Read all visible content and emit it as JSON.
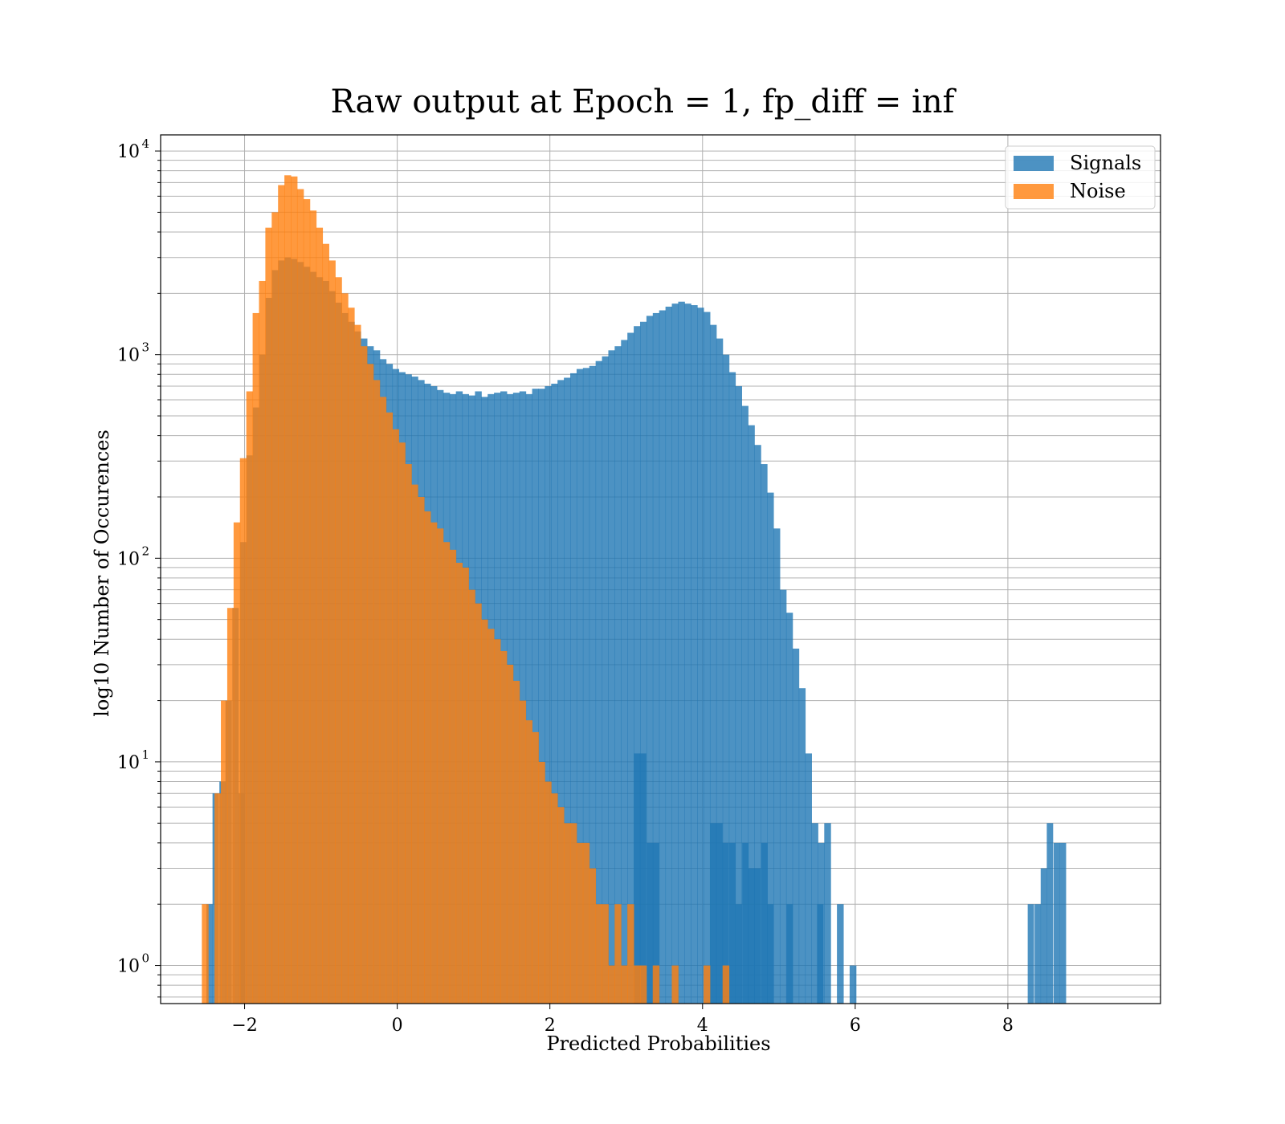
{
  "chart_data": {
    "type": "histogram",
    "title": "Raw output at Epoch = 1, fp_diff = inf",
    "xlabel": "Predicted Probabilities",
    "ylabel": "log10 Number of Occurences",
    "yscale": "log",
    "xlim": [
      -3.1,
      10.0
    ],
    "ylim": [
      0.65,
      12000
    ],
    "xticks": [
      -2,
      0,
      2,
      4,
      6,
      8
    ],
    "xtick_labels": [
      "−2",
      "0",
      "2",
      "4",
      "6",
      "8"
    ],
    "yticks": [
      1,
      10,
      100,
      1000,
      10000
    ],
    "ytick_labels": [
      {
        "base": "10",
        "exp": "0"
      },
      {
        "base": "10",
        "exp": "1"
      },
      {
        "base": "10",
        "exp": "2"
      },
      {
        "base": "10",
        "exp": "3"
      },
      {
        "base": "10",
        "exp": "4"
      }
    ],
    "grid": true,
    "grid_minor_y": true,
    "legend_position": "top-right",
    "series": [
      {
        "name": "Signals",
        "color": "#1f77b4",
        "alpha": 0.8,
        "bin_start": -2.06,
        "bin_width": 0.0832,
        "counts": [
          120,
          320,
          550,
          1000,
          1900,
          2600,
          2900,
          3000,
          2950,
          2850,
          2700,
          2550,
          2400,
          2300,
          2050,
          1800,
          1600,
          1450,
          1300,
          1200,
          1100,
          1050,
          950,
          900,
          850,
          820,
          800,
          780,
          750,
          720,
          700,
          670,
          650,
          640,
          660,
          640,
          630,
          660,
          620,
          640,
          650,
          660,
          640,
          650,
          660,
          640,
          680,
          680,
          700,
          720,
          750,
          770,
          810,
          850,
          860,
          880,
          930,
          980,
          1050,
          1100,
          1180,
          1280,
          1380,
          1450,
          1550,
          1600,
          1650,
          1720,
          1780,
          1820,
          1780,
          1750,
          1700,
          1620,
          1400,
          1200,
          1000,
          820,
          700,
          560,
          450,
          360,
          290,
          210,
          140,
          70,
          54,
          36,
          23,
          11,
          5,
          4,
          5,
          0,
          2,
          0,
          1
        ],
        "bins": [
          [
            -2.5,
            2
          ],
          [
            -2.42,
            7
          ],
          [
            -2.33,
            8
          ],
          [
            -2.25,
            20
          ],
          [
            -2.16,
            57
          ],
          [
            -2.08,
            7
          ],
          [
            3.1,
            11
          ],
          [
            3.18,
            11
          ],
          [
            3.27,
            4
          ],
          [
            3.35,
            4
          ],
          [
            4.1,
            5
          ],
          [
            4.18,
            5
          ],
          [
            4.26,
            4
          ],
          [
            4.35,
            4
          ],
          [
            4.43,
            2
          ],
          [
            4.52,
            4
          ],
          [
            4.6,
            3
          ],
          [
            4.68,
            3
          ],
          [
            4.77,
            4
          ],
          [
            4.85,
            2
          ],
          [
            5.1,
            2
          ],
          [
            5.5,
            2
          ],
          [
            8.26,
            2
          ],
          [
            8.35,
            2
          ],
          [
            8.43,
            3
          ],
          [
            8.51,
            5
          ],
          [
            8.6,
            4
          ],
          [
            8.68,
            4
          ]
        ]
      },
      {
        "name": "Noise",
        "color": "#ff7f0e",
        "alpha": 0.8,
        "bin_start": -2.56,
        "bin_width": 0.0832,
        "counts": [
          2,
          0,
          7,
          20,
          57,
          150,
          310,
          660,
          1600,
          2300,
          4200,
          5000,
          6800,
          7600,
          7500,
          6500,
          5800,
          5100,
          4200,
          3500,
          2900,
          2400,
          2000,
          1700,
          1400,
          1100,
          900,
          750,
          620,
          520,
          430,
          370,
          290,
          230,
          200,
          170,
          150,
          140,
          120,
          110,
          95,
          90,
          70,
          60,
          50,
          45,
          40,
          35,
          30,
          25,
          20,
          16,
          14,
          10,
          8,
          7,
          6,
          5,
          5,
          4,
          4,
          3,
          2,
          2,
          1,
          2,
          1,
          2,
          1,
          1,
          0,
          1,
          0,
          0,
          1,
          0,
          0,
          0,
          0,
          1,
          0,
          0,
          1,
          0,
          0,
          0,
          0,
          0,
          0,
          0,
          0,
          0,
          0,
          0,
          0,
          0,
          0
        ]
      }
    ]
  }
}
